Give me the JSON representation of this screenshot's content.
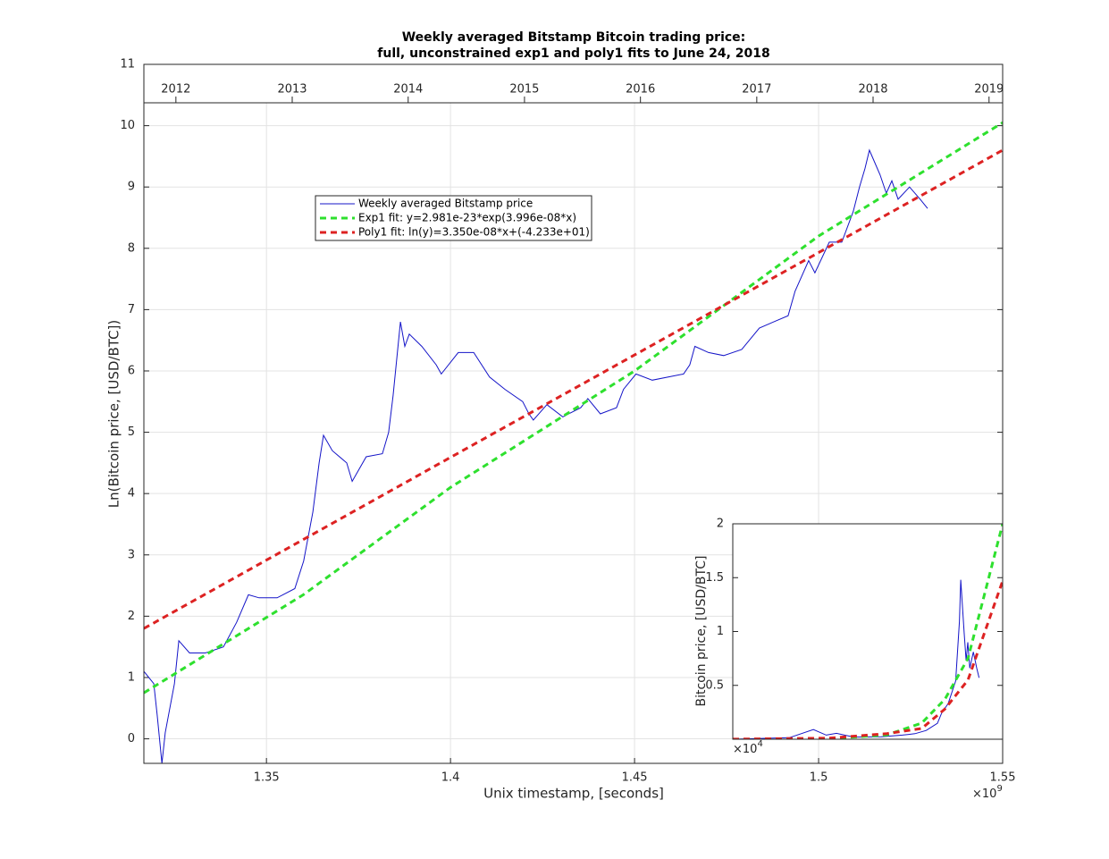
{
  "chart_data": [
    {
      "type": "line",
      "title": "Weekly averaged Bitstamp Bitcoin trading price:",
      "subtitle": "full, unconstrained exp1 and poly1 fits to June 24, 2018",
      "x_label": "Unix timestamp, [seconds]",
      "y_label": "Ln(Bitcoin price, [USD/BTC])",
      "x_multiplier": "×10",
      "x_multiplier_exp": "9",
      "xlim": [
        1.3167,
        1.55
      ],
      "xticks": [
        1.35,
        1.4,
        1.45,
        1.5,
        1.55
      ],
      "ylim": [
        -0.4,
        11
      ],
      "yticks": [
        0,
        1,
        2,
        3,
        4,
        5,
        6,
        7,
        8,
        9,
        10,
        11
      ],
      "x2ticks": [
        {
          "value": 1.3254,
          "label": "2012"
        },
        {
          "value": 1.357,
          "label": "2013"
        },
        {
          "value": 1.3885,
          "label": "2014"
        },
        {
          "value": 1.4201,
          "label": "2015"
        },
        {
          "value": 1.4516,
          "label": "2016"
        },
        {
          "value": 1.4832,
          "label": "2017"
        },
        {
          "value": 1.5148,
          "label": "2018"
        },
        {
          "value": 1.5463,
          "label": "2019"
        }
      ],
      "grid": true,
      "series": [
        {
          "name": "Weekly averaged Bitstamp price",
          "color": "#1414c8",
          "linestyle": "solid",
          "x": [
            1.3167,
            1.3194,
            1.3203,
            1.3216,
            1.3225,
            1.325,
            1.3262,
            1.3291,
            1.3334,
            1.3383,
            1.3419,
            1.3451,
            1.348,
            1.3529,
            1.3577,
            1.3601,
            1.3626,
            1.3643,
            1.3655,
            1.3679,
            1.3718,
            1.3733,
            1.3771,
            1.3815,
            1.3832,
            1.3844,
            1.3864,
            1.3876,
            1.3888,
            1.3922,
            1.3961,
            1.3975,
            1.4021,
            1.4063,
            1.4106,
            1.4148,
            1.4196,
            1.4213,
            1.4225,
            1.4262,
            1.4305,
            1.4354,
            1.4373,
            1.4407,
            1.4451,
            1.447,
            1.4504,
            1.4548,
            1.4633,
            1.465,
            1.4664,
            1.4701,
            1.4742,
            1.4791,
            1.4839,
            1.4878,
            1.4917,
            1.4936,
            1.4973,
            1.499,
            1.5029,
            1.5063,
            1.5094,
            1.5111,
            1.5126,
            1.5138,
            1.5167,
            1.5184,
            1.5199,
            1.5216,
            1.5247,
            1.5276,
            1.5296
          ],
          "values": [
            1.1,
            0.9,
            0.4,
            -0.4,
            0.1,
            0.9,
            1.6,
            1.4,
            1.4,
            1.5,
            1.9,
            2.35,
            2.3,
            2.3,
            2.45,
            2.9,
            3.7,
            4.5,
            4.95,
            4.7,
            4.5,
            4.2,
            4.6,
            4.65,
            5.0,
            5.6,
            6.8,
            6.4,
            6.6,
            6.4,
            6.1,
            5.95,
            6.3,
            6.3,
            5.9,
            5.7,
            5.5,
            5.3,
            5.2,
            5.45,
            5.25,
            5.4,
            5.55,
            5.3,
            5.4,
            5.7,
            5.95,
            5.85,
            5.95,
            6.1,
            6.4,
            6.3,
            6.25,
            6.35,
            6.7,
            6.8,
            6.9,
            7.3,
            7.8,
            7.6,
            8.1,
            8.1,
            8.6,
            9.0,
            9.3,
            9.6,
            9.2,
            8.9,
            9.1,
            8.8,
            9.0,
            8.8,
            8.65
          ]
        },
        {
          "name": "Exp1 fit: y=2.981e-23*exp(3.996e-08*x)",
          "color": "#2ee02e",
          "linestyle": "dashed",
          "x": [
            1.3167,
            1.36,
            1.4,
            1.45,
            1.5,
            1.55
          ],
          "values": [
            0.75,
            2.35,
            4.1,
            6.0,
            8.2,
            10.05
          ]
        },
        {
          "name": "Poly1 fit: ln(y)=3.350e-08*x+(-4.233e+01)",
          "color": "#dd2222",
          "linestyle": "dashed",
          "x": [
            1.3167,
            1.36,
            1.4,
            1.45,
            1.5,
            1.55
          ],
          "values": [
            1.8,
            3.25,
            4.59,
            6.26,
            7.93,
            9.6
          ]
        }
      ]
    },
    {
      "type": "line",
      "y_label": "Bitcoin price, [USD/BTC]",
      "y_multiplier": "×10",
      "y_multiplier_exp": "4",
      "xlim": [
        1.3167,
        1.55
      ],
      "ylim": [
        0,
        2
      ],
      "yticks": [
        0.5,
        1,
        1.5,
        2
      ],
      "grid": false,
      "series": [
        {
          "color": "#1414c8",
          "linestyle": "solid",
          "x": [
            1.3167,
            1.3655,
            1.3864,
            1.3975,
            1.4063,
            1.4213,
            1.4451,
            1.4633,
            1.4742,
            1.4839,
            1.4936,
            1.4973,
            1.5029,
            1.5094,
            1.5126,
            1.5138,
            1.5167,
            1.5184,
            1.5199,
            1.5216,
            1.5247,
            1.5276,
            1.5296
          ],
          "values": [
            0.0003,
            0.0141,
            0.0898,
            0.0384,
            0.0545,
            0.02,
            0.0221,
            0.0383,
            0.0518,
            0.0812,
            0.148,
            0.244,
            0.33,
            0.54,
            1.09,
            1.48,
            0.99,
            0.73,
            0.9,
            0.66,
            0.81,
            0.66,
            0.57
          ]
        },
        {
          "color": "#2ee02e",
          "linestyle": "dashed",
          "x": [
            1.3167,
            1.36,
            1.4,
            1.45,
            1.48,
            1.5,
            1.52,
            1.55
          ],
          "values": [
            0,
            0.001,
            0.006,
            0.04,
            0.15,
            0.37,
            0.75,
            2.0
          ]
        },
        {
          "color": "#dd2222",
          "linestyle": "dashed",
          "x": [
            1.3167,
            1.4,
            1.45,
            1.48,
            1.5,
            1.52,
            1.55
          ],
          "values": [
            0.0006,
            0.01,
            0.052,
            0.1,
            0.28,
            0.55,
            1.47
          ]
        }
      ]
    }
  ]
}
